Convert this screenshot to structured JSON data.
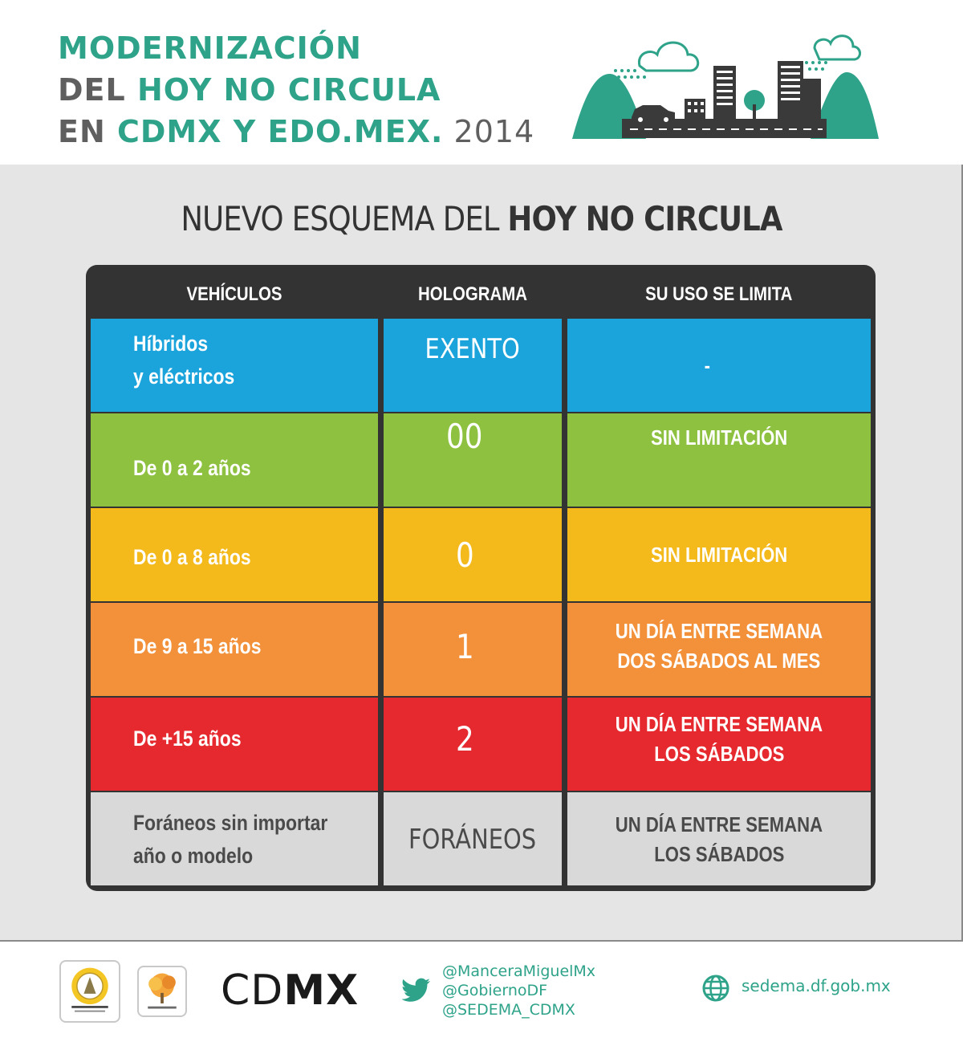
{
  "header": {
    "title_line1": "MODERNIZACIÓN",
    "title_line2_a": "DEL ",
    "title_line2_b": "HOY NO CIRCULA",
    "title_line3_a": "EN ",
    "title_line3_b": "CDMX Y EDO.MEX.",
    "title_line3_c": " 2014",
    "illustration": "city-with-car-clouds-icon"
  },
  "panel": {
    "title_regular": "NUEVO ESQUEMA DEL ",
    "title_bold": "HOY NO CIRCULA"
  },
  "table": {
    "headers": [
      "VEHÍCULOS",
      "HOLOGRAMA",
      "SU USO SE LIMITA"
    ],
    "rows": [
      {
        "vehicle_line1": "Híbridos",
        "vehicle_line2": "y eléctricos",
        "hologram": "EXENTO",
        "limit_line1": "-",
        "limit_line2": "",
        "color": "#1ba3dc"
      },
      {
        "vehicle_line1": "De 0 a 2 años",
        "vehicle_line2": "",
        "hologram": "00",
        "limit_line1": "SIN LIMITACIÓN",
        "limit_line2": "",
        "color": "#8dc13f"
      },
      {
        "vehicle_line1": "De 0 a 8 años",
        "vehicle_line2": "",
        "hologram": "0",
        "limit_line1": "SIN LIMITACIÓN",
        "limit_line2": "",
        "color": "#f4b91a"
      },
      {
        "vehicle_line1": "De 9 a 15 años",
        "vehicle_line2": "",
        "hologram": "1",
        "limit_line1": "UN DÍA ENTRE SEMANA",
        "limit_line2": "DOS SÁBADOS AL MES",
        "color": "#f2913a"
      },
      {
        "vehicle_line1": "De +15 años",
        "vehicle_line2": "",
        "hologram": "2",
        "limit_line1": "UN DÍA ENTRE SEMANA",
        "limit_line2": "LOS SÁBADOS",
        "color": "#e6292e"
      },
      {
        "vehicle_line1": "Foráneos sin importar",
        "vehicle_line2": "año o modelo",
        "hologram": "FORÁNEOS",
        "limit_line1": "UN DÍA ENTRE SEMANA",
        "limit_line2": "LOS SÁBADOS",
        "color": "#d9d9da"
      }
    ]
  },
  "footer": {
    "seal_logo": "ciudad-de-mexico-seal-logo",
    "sedema_logo": "sedema-tree-logo",
    "cdmx_light": "CD",
    "cdmx_bold": "MX",
    "handles": [
      "@ManceraMiguelMx",
      "@GobiernoDF",
      "@SEDEMA_CDMX"
    ],
    "website": "sedema.df.gob.mx",
    "accent_color": "#2ea38a"
  }
}
